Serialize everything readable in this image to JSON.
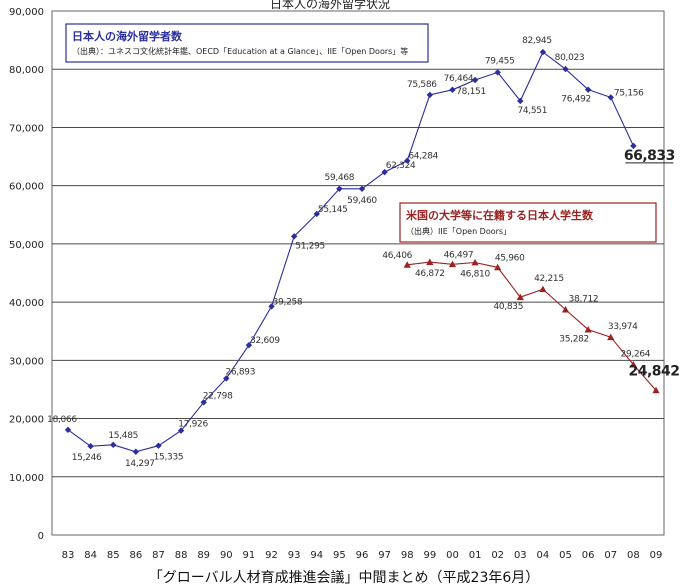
{
  "chart_data": {
    "type": "line",
    "title": "日本人の海外留学状況",
    "ylim": [
      0,
      90000
    ],
    "y_ticks": [
      "0",
      "10,000",
      "20,000",
      "30,000",
      "40,000",
      "50,000",
      "60,000",
      "70,000",
      "80,000",
      "90,000"
    ],
    "x": [
      "83",
      "84",
      "85",
      "86",
      "87",
      "88",
      "89",
      "90",
      "91",
      "92",
      "93",
      "94",
      "95",
      "96",
      "97",
      "98",
      "99",
      "00",
      "01",
      "02",
      "03",
      "04",
      "05",
      "06",
      "07",
      "08",
      "09"
    ],
    "series": [
      {
        "name": "日本人の海外留学者数",
        "source": "（出典）：ユネスコ文化統計年鑑、OECD「Education at a Glance」、IIE「Open Doors」等",
        "color": "#2b2f9c",
        "values": [
          18066,
          15246,
          15485,
          14297,
          15335,
          17926,
          22798,
          26893,
          32609,
          39258,
          51295,
          55145,
          59468,
          59460,
          62324,
          64284,
          75586,
          76464,
          78151,
          79455,
          74551,
          82945,
          80023,
          76492,
          75156,
          66833,
          null
        ],
        "labels": [
          "18,066",
          "15,246",
          "15,485",
          "14,297",
          "15,335",
          "17,926",
          "22,798",
          "26,893",
          "32,609",
          "39,258",
          "51,295",
          "55,145",
          "59,468",
          "59,460",
          "62,324",
          "64,284",
          "75,586",
          "76,464",
          "78,151",
          "79,455",
          "74,551",
          "82,945",
          "80,023",
          "76,492",
          "75,156",
          "66,833",
          null
        ]
      },
      {
        "name": "米国の大学等に在籍する日本人学生数",
        "source": "（出典）IIE「Open Doors」",
        "color": "#9a2323",
        "values": [
          null,
          null,
          null,
          null,
          null,
          null,
          null,
          null,
          null,
          null,
          null,
          null,
          null,
          null,
          null,
          46406,
          46872,
          46497,
          46810,
          45960,
          40835,
          42215,
          38712,
          35282,
          33974,
          29264,
          24842
        ],
        "labels": [
          null,
          null,
          null,
          null,
          null,
          null,
          null,
          null,
          null,
          null,
          null,
          null,
          null,
          null,
          null,
          "46,406",
          "46,872",
          "46,497",
          "46,810",
          "45,960",
          "40,835",
          "42,215",
          "38,712",
          "35,282",
          "33,974",
          "29,264",
          "24,842"
        ]
      }
    ],
    "grid": "horizontal",
    "legend_placement": "inside boxes"
  },
  "footer": {
    "text": "「グローバル人材育成推進会議」中間まとめ（平成23年6月）"
  }
}
